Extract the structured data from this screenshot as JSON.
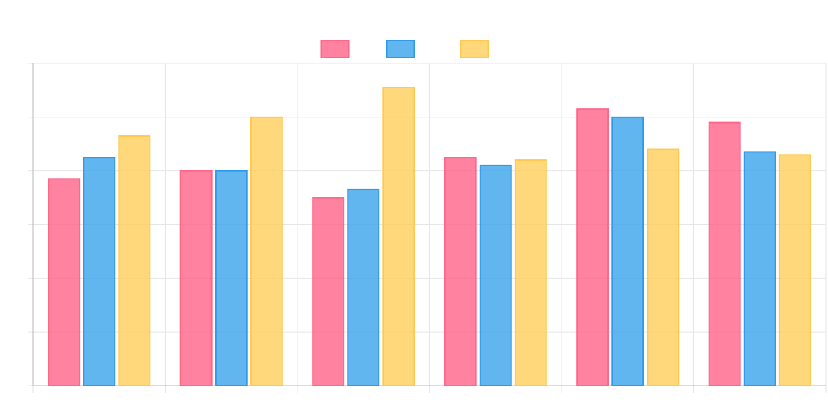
{
  "chart_data": {
    "type": "bar",
    "categories": [
      "",
      "",
      "",
      "",
      "",
      ""
    ],
    "series": [
      {
        "name": "",
        "values": [
          7.7,
          8.0,
          7.0,
          8.5,
          10.3,
          9.8
        ],
        "fill": "#ff5f85",
        "stroke": "#ff6688"
      },
      {
        "name": "",
        "values": [
          8.5,
          8.0,
          7.3,
          8.2,
          10.0,
          8.7
        ],
        "fill": "#36a2eb",
        "stroke": "#2f9ae8"
      },
      {
        "name": "",
        "values": [
          9.3,
          10.0,
          11.1,
          8.4,
          8.8,
          8.6
        ],
        "fill": "#ffcd56",
        "stroke": "#ffc94f"
      }
    ],
    "ylim": [
      0,
      12
    ],
    "yticks": [
      0,
      2,
      4,
      6,
      8,
      10,
      12
    ],
    "grid": true,
    "legend_position": "top-center",
    "colors": {
      "grid": "#e6e6e6",
      "axis": "#b8b8b8",
      "background": "#ffffff"
    }
  }
}
